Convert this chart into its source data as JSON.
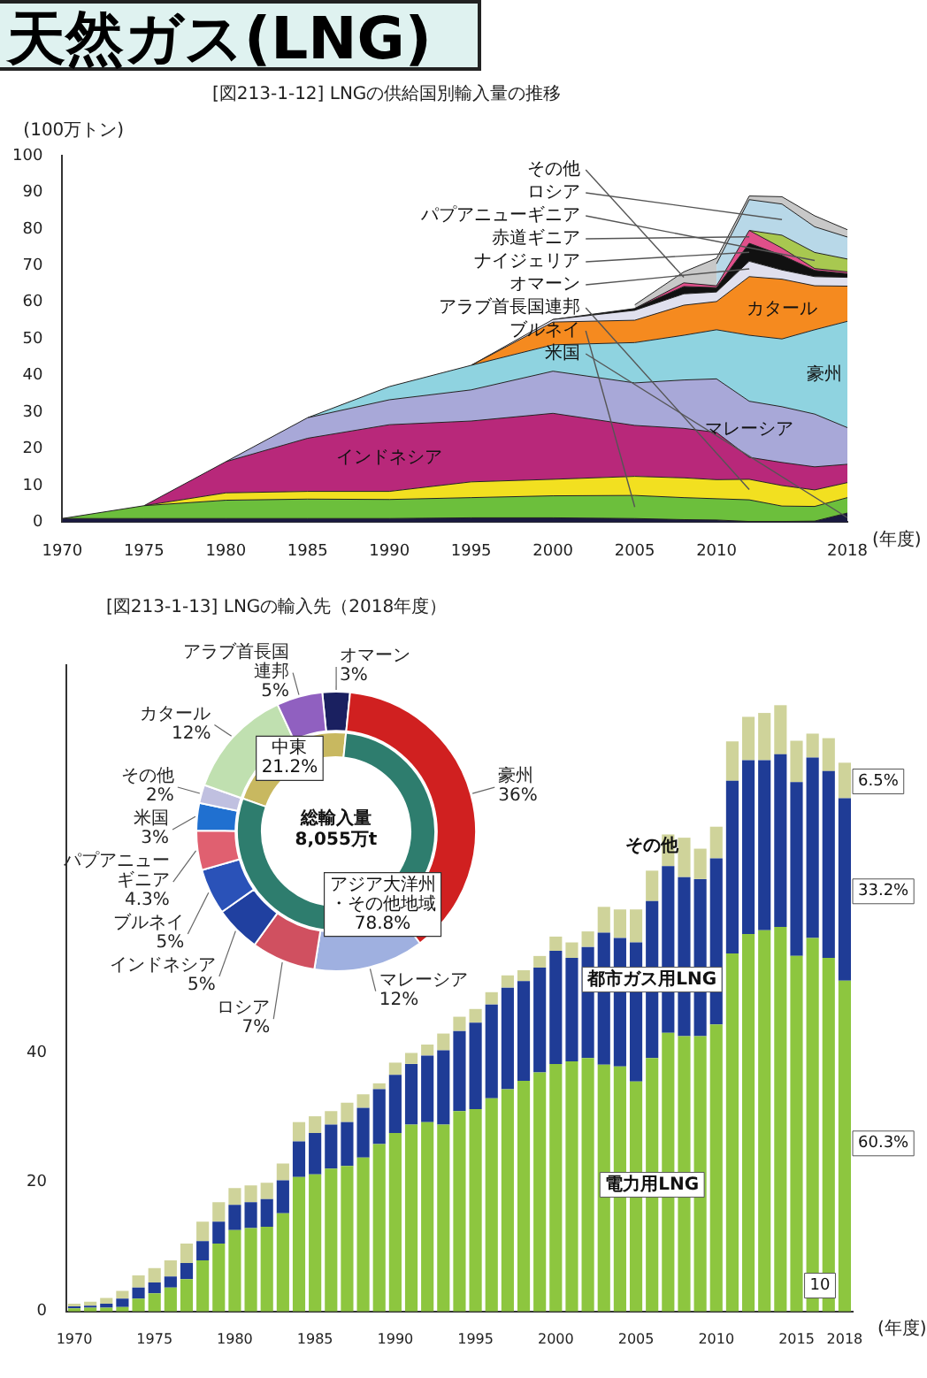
{
  "chart_data": [
    {
      "type": "area",
      "stacked": true,
      "title": "天然ガス(LNG)",
      "subtitle": "[図213-1-12] LNGの供給国別輸入量の推移",
      "ylabel": "(100万トン)",
      "xlabel": "(年度)",
      "x": [
        1970,
        1975,
        1980,
        1985,
        1990,
        1995,
        2000,
        2005,
        2008,
        2010,
        2012,
        2014,
        2016,
        2018
      ],
      "xlim": [
        1970,
        2018
      ],
      "xticks": [
        1970,
        1975,
        1980,
        1985,
        1990,
        1995,
        2000,
        2005,
        2010,
        2018
      ],
      "ylim": [
        0,
        100
      ],
      "yticks": [
        0,
        10,
        20,
        30,
        40,
        50,
        60,
        70,
        80,
        90,
        100
      ],
      "series": [
        {
          "name": "米国",
          "color": "#1a1a40",
          "values": [
            1,
            1,
            1,
            1,
            1,
            1.2,
            1.2,
            1,
            0.7,
            0.6,
            0.2,
            0.2,
            0.3,
            2.5
          ]
        },
        {
          "name": "ブルネイ",
          "color": "#6cbf3c",
          "values": [
            0,
            3.5,
            5,
            5.3,
            5.2,
            5.5,
            6,
            6.3,
            6,
            5.8,
            5.9,
            4.2,
            4,
            4.2
          ]
        },
        {
          "name": "アラブ首長国連邦",
          "color": "#f2e020",
          "values": [
            null,
            0,
            2,
            2.1,
            2.2,
            4.3,
            4.5,
            5.2,
            5.4,
            5.2,
            5.6,
            5.6,
            4.5,
            4.1
          ]
        },
        {
          "name": "インドネシア",
          "color": "#b8287a",
          "values": [
            null,
            0,
            8.5,
            14.5,
            18.2,
            16.6,
            18,
            13.9,
            13.5,
            12.9,
            6,
            6.3,
            6.3,
            5
          ]
        },
        {
          "name": "マレーシア",
          "color": "#a8a8d8",
          "values": [
            null,
            null,
            0,
            5.6,
            6.8,
            8.5,
            11.5,
            11.6,
            13.2,
            14.6,
            15.3,
            15.2,
            14.4,
            10
          ]
        },
        {
          "name": "豪州",
          "color": "#8fd3e0",
          "values": [
            null,
            null,
            null,
            0,
            3.6,
            6.7,
            7.2,
            11,
            12.2,
            13.4,
            18,
            18.5,
            23,
            29
          ]
        },
        {
          "name": "カタール",
          "color": "#f58a1f",
          "values": [
            null,
            null,
            null,
            null,
            null,
            0,
            6.2,
            6.1,
            8.2,
            7.7,
            16,
            16.3,
            12,
            9.6
          ]
        },
        {
          "name": "オマーン",
          "color": "#e0e0ee",
          "values": [
            null,
            null,
            null,
            null,
            null,
            0,
            0.7,
            2.7,
            3.1,
            2.6,
            4.2,
            2.5,
            2.5,
            2.4
          ]
        },
        {
          "name": "ナイジェリア",
          "color": "#111111",
          "values": [
            null,
            null,
            null,
            null,
            null,
            null,
            0,
            0.5,
            2,
            1.2,
            4.9,
            4,
            1.7,
            1
          ]
        },
        {
          "name": "赤道ギニア",
          "color": "#e04f8a",
          "values": [
            null,
            null,
            null,
            null,
            null,
            null,
            null,
            0,
            1,
            0.5,
            3.5,
            2,
            0.5,
            0.5
          ]
        },
        {
          "name": "パプアニューギニア",
          "color": "#a8c850",
          "values": [
            null,
            null,
            null,
            null,
            null,
            null,
            null,
            null,
            null,
            null,
            0,
            3.5,
            4.4,
            3.5
          ]
        },
        {
          "name": "ロシア",
          "color": "#b8d8e8",
          "values": [
            null,
            null,
            null,
            null,
            null,
            null,
            null,
            null,
            null,
            6,
            8.4,
            8.5,
            7,
            6
          ]
        },
        {
          "name": "その他",
          "color": "#c8c8c8",
          "values": [
            null,
            null,
            null,
            null,
            null,
            null,
            null,
            1,
            3,
            1.5,
            1,
            2,
            3,
            2
          ]
        }
      ]
    },
    {
      "type": "donut",
      "title": "[図213-1-13] LNGの輸入先（2018年度）",
      "categories": [
        "オマーン",
        "豪州",
        "マレーシア",
        "ロシア",
        "インドネシア",
        "ブルネイ",
        "パプアニューギニア",
        "米国",
        "その他",
        "カタール",
        "アラブ首長国連邦"
      ],
      "values": [
        3,
        36,
        12,
        7,
        5,
        5,
        4.3,
        3,
        2,
        12,
        5
      ],
      "value_labels": [
        "3%",
        "36%",
        "12%",
        "7%",
        "5%",
        "5%",
        "4.3%",
        "3%",
        "2%",
        "12%",
        "5%"
      ],
      "colors": [
        "#1a2060",
        "#d02020",
        "#9fb0e0",
        "#d05060",
        "#2040a0",
        "#2a52b8",
        "#e06070",
        "#2070d0",
        "#c0c0e0",
        "#c0e0b0",
        "#9060c0"
      ]
    },
    {
      "type": "donut",
      "categories": [
        "中東",
        "アジア大洋州・その他地域"
      ],
      "values": [
        21.2,
        78.8
      ],
      "value_labels": [
        "21.2%",
        "78.8%"
      ],
      "colors": [
        "#c8b860",
        "#2e7d6e"
      ],
      "annotations": [
        "総輸入量",
        "8,055万t"
      ]
    },
    {
      "type": "bar",
      "stacked": true,
      "xlabel": "(年度)",
      "categories": [
        "1970",
        null,
        null,
        null,
        null,
        "1975",
        null,
        null,
        null,
        null,
        "1980",
        null,
        null,
        null,
        null,
        "1985",
        null,
        null,
        null,
        null,
        "1990",
        null,
        null,
        null,
        null,
        "1995",
        null,
        null,
        null,
        null,
        "2000",
        null,
        null,
        null,
        null,
        "2005",
        null,
        null,
        null,
        null,
        "2010",
        null,
        null,
        null,
        null,
        "2015",
        null,
        null,
        "2018"
      ],
      "ylim": [
        0,
        100
      ],
      "yticks": [
        0,
        20,
        40
      ],
      "annotations": [
        {
          "text": "10",
          "x": "2015",
          "y": 4
        },
        {
          "text": "60.3%",
          "x": "2018",
          "y": 26
        },
        {
          "text": "33.2%",
          "x": "2018",
          "y": 65
        },
        {
          "text": "6.5%",
          "x": "2018",
          "y": 82
        }
      ],
      "series": [
        {
          "name": "電力用LNG",
          "color": "#8dc63f",
          "values": [
            0.5,
            0.6,
            0.6,
            0.7,
            2.0,
            2.8,
            3.7,
            5.0,
            7.9,
            10.5,
            12.6,
            12.9,
            13.1,
            15.2,
            20.8,
            21.2,
            22.1,
            22.5,
            23.8,
            25.9,
            27.6,
            28.9,
            29.3,
            28.9,
            31.0,
            31.3,
            33.0,
            34.4,
            35.7,
            37.0,
            38.3,
            38.7,
            39.2,
            38.2,
            37.9,
            35.6,
            39.2,
            43.1,
            42.6,
            42.6,
            44.4,
            55.4,
            58.4,
            59.0,
            59.5,
            55.0,
            57.8,
            54.7,
            51.2
          ]
        },
        {
          "name": "都市ガス用LNG",
          "color": "#1f3c96",
          "values": [
            0.3,
            0.3,
            0.6,
            1.3,
            1.7,
            1.7,
            1.7,
            2.5,
            3.0,
            3.4,
            3.9,
            4.0,
            4.3,
            5.1,
            5.5,
            6.4,
            6.8,
            6.8,
            7.7,
            8.5,
            9.0,
            9.4,
            10.3,
            11.5,
            12.4,
            13.4,
            14.5,
            15.7,
            15.4,
            16.2,
            17.5,
            16.0,
            17.2,
            20.4,
            19.9,
            21.5,
            24.3,
            25.8,
            24.6,
            24.3,
            25.7,
            26.7,
            26.9,
            26.3,
            26.7,
            26.9,
            27.9,
            28.9,
            28.2
          ]
        },
        {
          "name": "その他",
          "color": "#cfd39a",
          "values": [
            0.4,
            0.6,
            0.9,
            1.2,
            1.9,
            2.2,
            2.5,
            3.0,
            3.0,
            3.0,
            2.6,
            2.6,
            2.5,
            2.6,
            3.0,
            2.6,
            2.1,
            3.0,
            2.1,
            0.9,
            1.9,
            1.7,
            1.7,
            2.6,
            2.2,
            2.1,
            1.9,
            1.9,
            1.7,
            1.8,
            2.2,
            2.4,
            2.4,
            4.0,
            4.4,
            5.1,
            4.7,
            4.9,
            6.1,
            4.7,
            4.9,
            6.1,
            6.7,
            7.3,
            7.6,
            6.4,
            3.7,
            5.1,
            5.5
          ]
        }
      ]
    }
  ]
}
